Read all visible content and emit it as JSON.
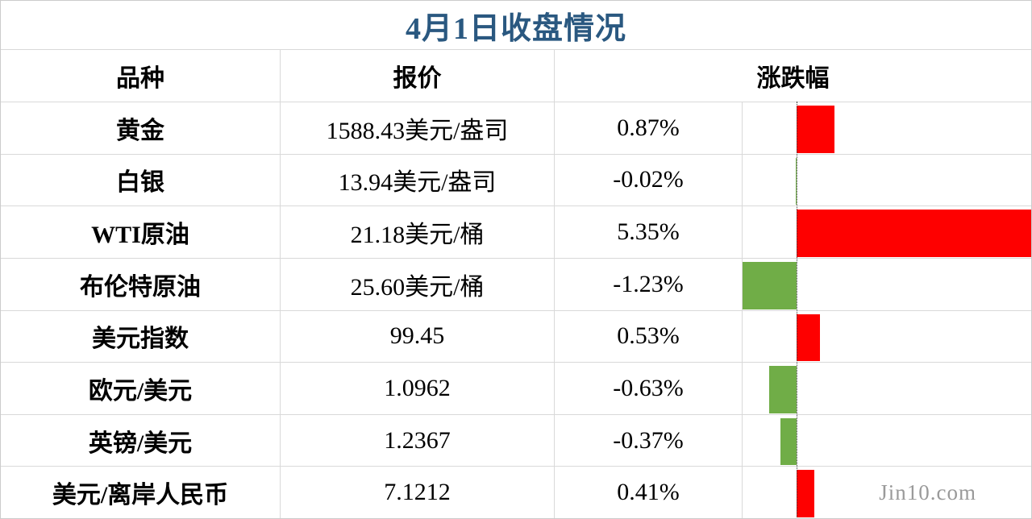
{
  "title": "4月1日收盘情况",
  "watermark": "Jin10.com",
  "columns": {
    "variety": "品种",
    "quote": "报价",
    "change": "涨跌幅"
  },
  "rows": [
    {
      "name": "黄金",
      "quote": "1588.43美元/盎司",
      "change": "0.87%",
      "change_value": 0.87
    },
    {
      "name": "白银",
      "quote": "13.94美元/盎司",
      "change": "-0.02%",
      "change_value": -0.02
    },
    {
      "name": "WTI原油",
      "quote": "21.18美元/桶",
      "change": "5.35%",
      "change_value": 5.35
    },
    {
      "name": "布伦特原油",
      "quote": "25.60美元/桶",
      "change": "-1.23%",
      "change_value": -1.23
    },
    {
      "name": "美元指数",
      "quote": "99.45",
      "change": "0.53%",
      "change_value": 0.53
    },
    {
      "name": "欧元/美元",
      "quote": "1.0962",
      "change": "-0.63%",
      "change_value": -0.63
    },
    {
      "name": "英镑/美元",
      "quote": "1.2367",
      "change": "-0.37%",
      "change_value": -0.37
    },
    {
      "name": "美元/离岸人民币",
      "quote": "7.1212",
      "change": "0.41%",
      "change_value": 0.41
    }
  ],
  "chart_data": {
    "type": "bar",
    "orientation": "horizontal",
    "title": "4月1日收盘情况",
    "categories": [
      "黄金",
      "白银",
      "WTI原油",
      "布伦特原油",
      "美元指数",
      "欧元/美元",
      "英镑/美元",
      "美元/离岸人民币"
    ],
    "values": [
      0.87,
      -0.02,
      5.35,
      -1.23,
      0.53,
      -0.63,
      -0.37,
      0.41
    ],
    "value_labels": [
      "0.87%",
      "-0.02%",
      "5.35%",
      "-1.23%",
      "0.53%",
      "-0.63%",
      "-0.37%",
      "0.41%"
    ],
    "xlim": [
      -1.23,
      5.35
    ],
    "grid": false,
    "zero_line": "dotted",
    "legend": "none"
  },
  "colors": {
    "title": "#2a5880",
    "positive_bar": "#fe0000",
    "negative_bar": "#70ad47",
    "gridline": "#d9d9d9",
    "watermark": "#9a9a9a"
  }
}
